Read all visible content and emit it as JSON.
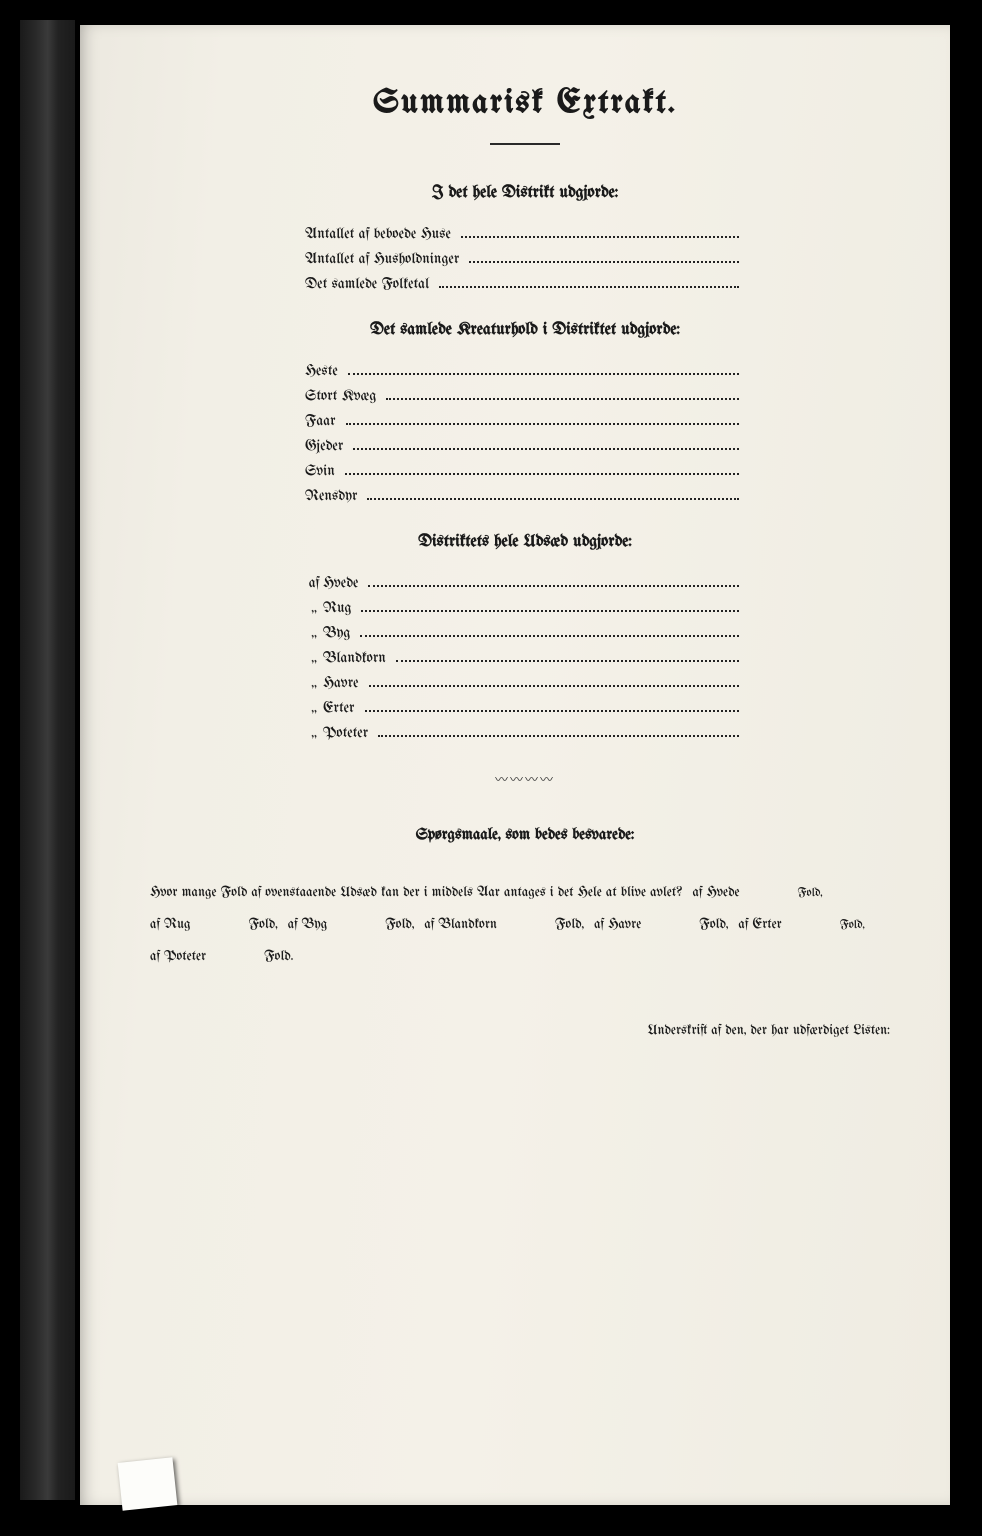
{
  "title": "Summarisk Extrakt.",
  "section1": {
    "heading": "I det hele Distrikt udgjorde:",
    "items": [
      {
        "label": "Antallet af beboede Huse"
      },
      {
        "label": "Antallet af Husholdninger"
      },
      {
        "label": "Det samlede Folketal"
      }
    ]
  },
  "section2": {
    "heading": "Det samlede Kreaturhold i Distriktet udgjorde:",
    "items": [
      {
        "label": "Heste"
      },
      {
        "label": "Stort Kvæg"
      },
      {
        "label": "Faar"
      },
      {
        "label": "Gjeder"
      },
      {
        "label": "Svin"
      },
      {
        "label": "Rensdyr"
      }
    ]
  },
  "section3": {
    "heading": "Distriktets hele Udsæd udgjorde:",
    "items": [
      {
        "prefix": "af",
        "label": "Hvede"
      },
      {
        "prefix": "„",
        "label": "Rug"
      },
      {
        "prefix": "„",
        "label": "Byg"
      },
      {
        "prefix": "„",
        "label": "Blandkorn"
      },
      {
        "prefix": "„",
        "label": "Havre"
      },
      {
        "prefix": "„",
        "label": "Erter"
      },
      {
        "prefix": "„",
        "label": "Poteter"
      }
    ]
  },
  "questions": {
    "heading": "Spørgsmaale, som bedes besvarede:",
    "intro": "Hvor mange Fold af ovenstaaende Udsæd kan der i middels Aar antages i det Hele at blive avlet?",
    "segments": [
      {
        "pre": "af Hvede",
        "suf": "Fold,"
      },
      {
        "pre": "af Rug",
        "suf": "Fold,"
      },
      {
        "pre": "af Byg",
        "suf": "Fold,"
      },
      {
        "pre": "af Blandkorn",
        "suf": "Fold,"
      },
      {
        "pre": "af Havre",
        "suf": "Fold,"
      },
      {
        "pre": "af Erter",
        "suf": "Fold,"
      },
      {
        "pre": "af Poteter",
        "suf": "Fold."
      }
    ]
  },
  "signature": "Underskrift af den, der har udfærdiget Listen:",
  "colors": {
    "page_bg": "#f3f0e7",
    "text": "#1a1a1a",
    "frame": "#000000"
  },
  "typography": {
    "title_fontsize_pt": 26,
    "heading_fontsize_pt": 13,
    "body_fontsize_pt": 11,
    "family": "blackletter/fraktur"
  }
}
